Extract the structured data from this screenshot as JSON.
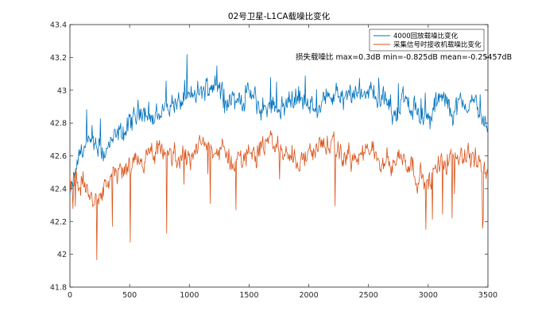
{
  "chart_data": {
    "type": "line",
    "title": "02号卫星-L1CA载噪比变化",
    "xlabel": "",
    "ylabel": "",
    "xlim": [
      0,
      3500
    ],
    "ylim": [
      41.8,
      43.4
    ],
    "xticks": [
      0,
      500,
      1000,
      1500,
      2000,
      2500,
      3000,
      3500
    ],
    "yticks": [
      41.8,
      42,
      42.2,
      42.4,
      42.6,
      42.8,
      43,
      43.2,
      43.4
    ],
    "xtick_labels": [
      "0",
      "500",
      "1000",
      "1500",
      "2000",
      "2500",
      "3000",
      "3500"
    ],
    "ytick_labels": [
      "41.8",
      "42",
      "42.2",
      "42.4",
      "42.6",
      "42.8",
      "43",
      "43.2",
      "43.4"
    ],
    "grid": false,
    "legend_position": "top-right",
    "annotation": "损失载噪比 max=0.3dB min=-0.825dB mean=-0.25457dB",
    "series": [
      {
        "name": "4000回放载噪比变化",
        "color": "#0072BD",
        "x": [
          0,
          100,
          200,
          300,
          400,
          500,
          600,
          700,
          800,
          900,
          1000,
          1100,
          1200,
          1300,
          1400,
          1500,
          1600,
          1700,
          1800,
          1900,
          2000,
          2100,
          2200,
          2300,
          2400,
          2500,
          2600,
          2700,
          2800,
          2900,
          3000,
          3100,
          3200,
          3300,
          3400,
          3500
        ],
        "values": [
          42.35,
          42.65,
          42.65,
          42.62,
          42.72,
          42.78,
          42.9,
          42.82,
          42.9,
          42.92,
          42.95,
          42.98,
          43.05,
          42.96,
          42.92,
          42.98,
          42.88,
          42.92,
          42.9,
          42.98,
          42.88,
          42.95,
          42.96,
          42.94,
          42.95,
          43.0,
          42.96,
          42.86,
          42.95,
          42.88,
          42.8,
          42.96,
          42.88,
          42.92,
          42.92,
          42.72
        ]
      },
      {
        "name": "采集信号时接收机载噪比变化",
        "color": "#D95319",
        "x": [
          0,
          100,
          200,
          300,
          400,
          500,
          600,
          700,
          800,
          900,
          1000,
          1100,
          1200,
          1300,
          1400,
          1500,
          1600,
          1700,
          1800,
          1900,
          2000,
          2100,
          2200,
          2300,
          2400,
          2500,
          2600,
          2700,
          2800,
          2900,
          3000,
          3100,
          3200,
          3300,
          3400,
          3500
        ],
        "values": [
          42.42,
          42.45,
          42.3,
          42.42,
          42.5,
          42.5,
          42.56,
          42.6,
          42.62,
          42.58,
          42.6,
          42.66,
          42.66,
          42.6,
          42.56,
          42.62,
          42.65,
          42.68,
          42.62,
          42.58,
          42.6,
          42.68,
          42.64,
          42.6,
          42.58,
          42.62,
          42.6,
          42.56,
          42.6,
          42.5,
          42.42,
          42.56,
          42.6,
          42.62,
          42.58,
          42.5
        ]
      }
    ]
  }
}
